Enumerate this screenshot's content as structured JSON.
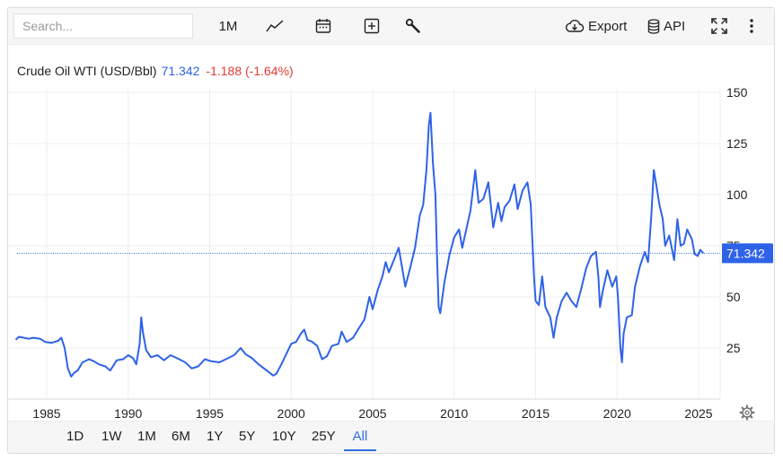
{
  "toolbar": {
    "search_placeholder": "Search...",
    "interval_label": "1M",
    "export_label": "Export",
    "api_label": "API",
    "icons": [
      "line-chart-icon",
      "calendar-icon",
      "add-icon",
      "wrench-icon",
      "cloud-download-icon",
      "database-icon",
      "fullscreen-icon",
      "more-vertical-icon",
      "settings-gear-icon"
    ]
  },
  "legend": {
    "name": "Crude Oil WTI (USD/Bbl)",
    "last": "71.342",
    "change": "-1.188 (-1.64%)"
  },
  "last_price_tag": "71.342",
  "colors": {
    "line": "#2e62e8",
    "up_value": "#2e62e8",
    "down_value": "#e53935",
    "tag_bg": "#2e62e8",
    "grid": "#eeeeee",
    "active_range": "#2f6fe0"
  },
  "ranges": [
    "1D",
    "1W",
    "1M",
    "6M",
    "1Y",
    "5Y",
    "10Y",
    "25Y",
    "All"
  ],
  "active_range": "All",
  "chart_data": {
    "type": "line",
    "title": "Crude Oil WTI (USD/Bbl)",
    "xlabel": "",
    "ylabel": "",
    "x_ticks": [
      "1985",
      "1990",
      "1995",
      "2000",
      "2005",
      "2010",
      "2015",
      "2020",
      "2025"
    ],
    "y_ticks": [
      "25",
      "50",
      "75",
      "100",
      "125",
      "150"
    ],
    "xlim": [
      1983.1,
      2025.7
    ],
    "ylim": [
      0,
      160
    ],
    "last_value": 71.342,
    "grid": true,
    "series": [
      {
        "name": "Crude Oil WTI (USD/Bbl)",
        "points": [
          [
            1983.1,
            29
          ],
          [
            1983.3,
            30.5
          ],
          [
            1983.6,
            30
          ],
          [
            1983.9,
            29.5
          ],
          [
            1984.2,
            30
          ],
          [
            1984.6,
            29.5
          ],
          [
            1984.9,
            28
          ],
          [
            1985.3,
            27.5
          ],
          [
            1985.7,
            28.5
          ],
          [
            1985.9,
            30
          ],
          [
            1986.1,
            25
          ],
          [
            1986.3,
            15
          ],
          [
            1986.5,
            11
          ],
          [
            1986.7,
            13
          ],
          [
            1986.9,
            14
          ],
          [
            1987.2,
            18
          ],
          [
            1987.6,
            19.5
          ],
          [
            1987.9,
            18.5
          ],
          [
            1988.2,
            17
          ],
          [
            1988.6,
            16
          ],
          [
            1988.9,
            14
          ],
          [
            1989.3,
            19
          ],
          [
            1989.7,
            19.5
          ],
          [
            1990.0,
            21.5
          ],
          [
            1990.3,
            20
          ],
          [
            1990.5,
            17
          ],
          [
            1990.7,
            27
          ],
          [
            1990.8,
            40
          ],
          [
            1990.9,
            33
          ],
          [
            1991.1,
            24
          ],
          [
            1991.4,
            20.5
          ],
          [
            1991.8,
            21.5
          ],
          [
            1992.2,
            19
          ],
          [
            1992.6,
            21.5
          ],
          [
            1993.0,
            20
          ],
          [
            1993.5,
            18
          ],
          [
            1993.9,
            15
          ],
          [
            1994.3,
            16
          ],
          [
            1994.7,
            19.5
          ],
          [
            1995.1,
            18.5
          ],
          [
            1995.6,
            18
          ],
          [
            1996.0,
            19.5
          ],
          [
            1996.5,
            21.5
          ],
          [
            1996.9,
            25
          ],
          [
            1997.2,
            22
          ],
          [
            1997.6,
            20
          ],
          [
            1998.0,
            17
          ],
          [
            1998.5,
            14
          ],
          [
            1998.9,
            11.5
          ],
          [
            1999.1,
            12.5
          ],
          [
            1999.4,
            17
          ],
          [
            1999.7,
            22
          ],
          [
            2000.0,
            27
          ],
          [
            2000.3,
            28
          ],
          [
            2000.6,
            32
          ],
          [
            2000.8,
            34
          ],
          [
            2001.0,
            29
          ],
          [
            2001.3,
            28
          ],
          [
            2001.6,
            26
          ],
          [
            2001.9,
            19.5
          ],
          [
            2002.2,
            21
          ],
          [
            2002.5,
            26
          ],
          [
            2002.9,
            27
          ],
          [
            2003.1,
            33
          ],
          [
            2003.4,
            28
          ],
          [
            2003.8,
            30
          ],
          [
            2004.1,
            34
          ],
          [
            2004.5,
            39
          ],
          [
            2004.8,
            50
          ],
          [
            2005.0,
            44
          ],
          [
            2005.3,
            53
          ],
          [
            2005.6,
            60
          ],
          [
            2005.8,
            67
          ],
          [
            2006.0,
            62
          ],
          [
            2006.3,
            68
          ],
          [
            2006.6,
            74
          ],
          [
            2006.9,
            60
          ],
          [
            2007.0,
            55
          ],
          [
            2007.3,
            64
          ],
          [
            2007.6,
            74
          ],
          [
            2007.9,
            90
          ],
          [
            2008.1,
            95
          ],
          [
            2008.3,
            112
          ],
          [
            2008.45,
            134
          ],
          [
            2008.55,
            140
          ],
          [
            2008.7,
            115
          ],
          [
            2008.85,
            100
          ],
          [
            2008.95,
            70
          ],
          [
            2009.05,
            45
          ],
          [
            2009.15,
            42
          ],
          [
            2009.4,
            57
          ],
          [
            2009.7,
            70
          ],
          [
            2010.0,
            79
          ],
          [
            2010.3,
            83
          ],
          [
            2010.5,
            74
          ],
          [
            2010.8,
            85
          ],
          [
            2011.0,
            92
          ],
          [
            2011.3,
            112
          ],
          [
            2011.5,
            96
          ],
          [
            2011.8,
            98
          ],
          [
            2012.1,
            106
          ],
          [
            2012.4,
            84
          ],
          [
            2012.7,
            96
          ],
          [
            2012.9,
            87
          ],
          [
            2013.1,
            94
          ],
          [
            2013.4,
            97
          ],
          [
            2013.7,
            105
          ],
          [
            2013.9,
            93
          ],
          [
            2014.2,
            102
          ],
          [
            2014.5,
            106
          ],
          [
            2014.7,
            95
          ],
          [
            2014.9,
            60
          ],
          [
            2015.0,
            48
          ],
          [
            2015.2,
            46
          ],
          [
            2015.4,
            60
          ],
          [
            2015.6,
            45
          ],
          [
            2015.9,
            40
          ],
          [
            2016.1,
            30
          ],
          [
            2016.3,
            40
          ],
          [
            2016.6,
            48
          ],
          [
            2016.9,
            52
          ],
          [
            2017.2,
            48
          ],
          [
            2017.5,
            45
          ],
          [
            2017.8,
            54
          ],
          [
            2018.1,
            64
          ],
          [
            2018.4,
            70
          ],
          [
            2018.7,
            72
          ],
          [
            2018.85,
            60
          ],
          [
            2018.95,
            45
          ],
          [
            2019.1,
            52
          ],
          [
            2019.4,
            63
          ],
          [
            2019.7,
            55
          ],
          [
            2019.95,
            60
          ],
          [
            2020.05,
            50
          ],
          [
            2020.2,
            25
          ],
          [
            2020.3,
            18
          ],
          [
            2020.4,
            32
          ],
          [
            2020.6,
            40
          ],
          [
            2020.9,
            41
          ],
          [
            2021.1,
            55
          ],
          [
            2021.4,
            65
          ],
          [
            2021.7,
            72
          ],
          [
            2021.9,
            67
          ],
          [
            2022.1,
            90
          ],
          [
            2022.25,
            112
          ],
          [
            2022.4,
            105
          ],
          [
            2022.6,
            95
          ],
          [
            2022.8,
            88
          ],
          [
            2022.95,
            75
          ],
          [
            2023.2,
            80
          ],
          [
            2023.5,
            68
          ],
          [
            2023.7,
            88
          ],
          [
            2023.9,
            75
          ],
          [
            2024.1,
            76
          ],
          [
            2024.3,
            83
          ],
          [
            2024.6,
            78
          ],
          [
            2024.75,
            71
          ],
          [
            2024.95,
            70
          ],
          [
            2025.1,
            73
          ],
          [
            2025.3,
            71.342
          ]
        ]
      }
    ]
  }
}
